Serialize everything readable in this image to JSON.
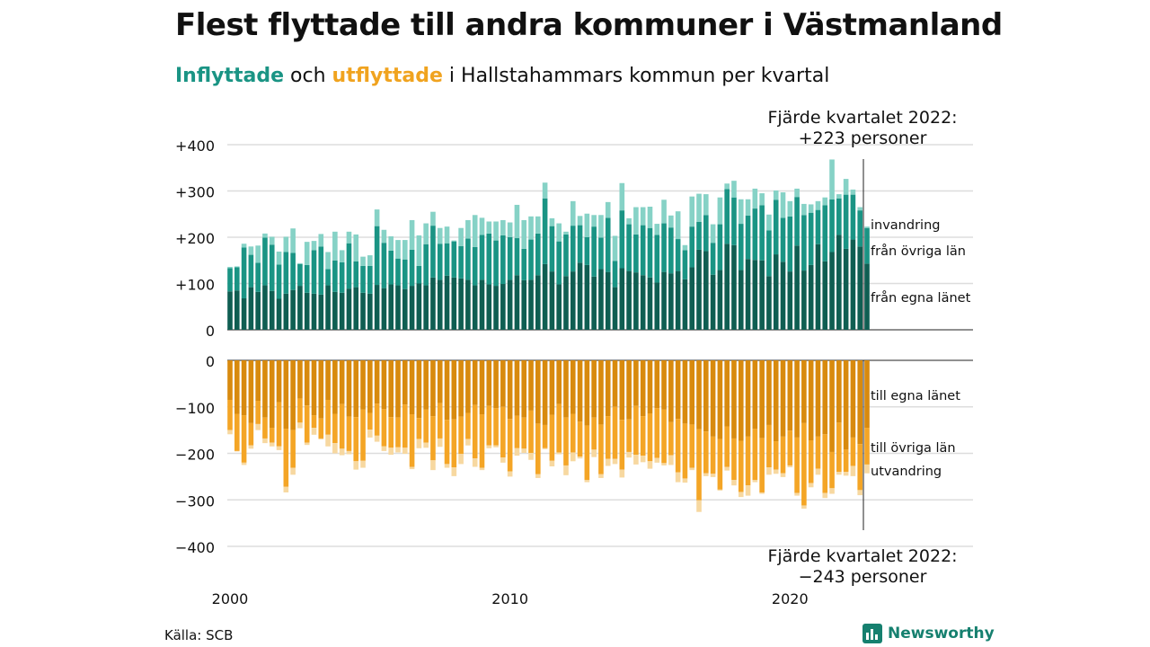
{
  "title": "Flest flyttade till andra kommuner i Västmanland",
  "subtitle": {
    "in_word": "Inflyttade",
    "mid_word": " och ",
    "out_word": "utflyttade",
    "rest": " i Hallstahammars kommun per kvartal"
  },
  "source": "Källa: SCB",
  "logo_text": "Newsworthy",
  "colors": {
    "in_egna": "#0f5e52",
    "in_ovriga": "#1a9484",
    "in_invandring": "#86d2c6",
    "out_egna": "#d88a0e",
    "out_ovriga": "#f4a526",
    "out_utvandring": "#f7d8a0",
    "grid": "#dddddd"
  },
  "chart_data": {
    "type": "bar",
    "stacked": true,
    "diverging": true,
    "period": "quarter",
    "start": "2000 Q1",
    "end": "2022 Q4",
    "x_ticks": [
      "2000",
      "2010",
      "2020"
    ],
    "y_ticks_top": [
      "+400",
      "+300",
      "+200",
      "+100",
      "0"
    ],
    "y_ticks_bottom": [
      "0",
      "−100",
      "−200",
      "−300",
      "−400"
    ],
    "ylim_in": [
      0,
      400
    ],
    "ylim_out": [
      -400,
      0
    ],
    "grid": true,
    "series_labels": {
      "in_egna": "från egna länet",
      "in_ovriga": "från övriga län",
      "in_invandring": "invandring",
      "out_egna": "till egna länet",
      "out_ovriga": "till övriga län",
      "out_utvandring": "utvandring"
    },
    "annotation_in": [
      "Fjärde kvartalet 2022:",
      "+223 personer"
    ],
    "annotation_out": [
      "Fjärde kvartalet 2022:",
      "−243 personer"
    ],
    "in_egna": [
      83,
      85,
      68,
      92,
      82,
      96,
      84,
      67,
      78,
      86,
      95,
      80,
      78,
      76,
      96,
      82,
      80,
      89,
      92,
      80,
      78,
      97,
      90,
      98,
      96,
      88,
      95,
      100,
      96,
      113,
      108,
      117,
      113,
      111,
      108,
      96,
      108,
      98,
      95,
      99,
      108,
      118,
      107,
      108,
      118,
      142,
      126,
      98,
      116,
      126,
      145,
      140,
      115,
      131,
      125,
      92,
      133,
      127,
      124,
      118,
      113,
      102,
      125,
      122,
      127,
      109,
      135,
      173,
      170,
      119,
      129,
      186,
      183,
      129,
      153,
      151,
      150,
      116,
      163,
      147,
      126,
      182,
      128,
      140,
      185,
      148,
      168,
      205,
      175,
      195,
      180,
      143
    ],
    "in_ovriga": [
      50,
      50,
      110,
      70,
      63,
      103,
      100,
      74,
      90,
      80,
      47,
      60,
      94,
      104,
      35,
      68,
      66,
      98,
      56,
      58,
      60,
      127,
      98,
      73,
      58,
      64,
      78,
      38,
      89,
      112,
      78,
      70,
      78,
      70,
      89,
      83,
      97,
      110,
      98,
      105,
      92,
      80,
      68,
      87,
      90,
      142,
      98,
      93,
      90,
      99,
      81,
      60,
      108,
      68,
      117,
      57,
      125,
      101,
      82,
      108,
      107,
      103,
      105,
      99,
      69,
      63,
      88,
      60,
      78,
      69,
      99,
      118,
      103,
      100,
      94,
      111,
      119,
      99,
      118,
      95,
      119,
      105,
      120,
      113,
      74,
      121,
      114,
      79,
      117,
      97,
      78,
      77
    ],
    "in_invandring": [
      3,
      2,
      8,
      18,
      37,
      9,
      17,
      28,
      33,
      53,
      2,
      50,
      20,
      27,
      37,
      62,
      26,
      25,
      58,
      20,
      23,
      36,
      28,
      31,
      40,
      42,
      64,
      66,
      45,
      30,
      34,
      36,
      2,
      39,
      40,
      69,
      37,
      26,
      41,
      33,
      32,
      72,
      62,
      50,
      37,
      34,
      17,
      39,
      6,
      53,
      20,
      51,
      25,
      49,
      34,
      54,
      59,
      13,
      59,
      39,
      46,
      24,
      51,
      26,
      60,
      11,
      65,
      61,
      45,
      40,
      58,
      12,
      36,
      53,
      35,
      43,
      26,
      34,
      20,
      55,
      33,
      18,
      24,
      18,
      19,
      17,
      86,
      9,
      34,
      11,
      7,
      3
    ],
    "out_egna": [
      85,
      115,
      118,
      135,
      87,
      123,
      145,
      90,
      147,
      150,
      82,
      97,
      118,
      125,
      85,
      115,
      94,
      121,
      122,
      106,
      113,
      93,
      105,
      122,
      123,
      95,
      116,
      124,
      106,
      120,
      92,
      128,
      127,
      121,
      113,
      96,
      116,
      98,
      103,
      100,
      126,
      119,
      123,
      108,
      136,
      139,
      117,
      94,
      123,
      115,
      132,
      140,
      123,
      138,
      120,
      100,
      128,
      127,
      98,
      120,
      114,
      103,
      106,
      133,
      126,
      136,
      138,
      148,
      153,
      164,
      169,
      142,
      168,
      173,
      164,
      147,
      167,
      139,
      174,
      164,
      151,
      166,
      135,
      172,
      164,
      159,
      197,
      134,
      192,
      166,
      180,
      145
    ],
    "out_ovriga": [
      65,
      80,
      102,
      48,
      50,
      45,
      32,
      95,
      125,
      81,
      52,
      80,
      27,
      43,
      75,
      63,
      96,
      74,
      95,
      110,
      36,
      69,
      80,
      66,
      64,
      93,
      113,
      45,
      71,
      95,
      76,
      95,
      103,
      80,
      56,
      115,
      115,
      85,
      80,
      109,
      113,
      70,
      67,
      91,
      109,
      50,
      99,
      104,
      103,
      83,
      75,
      117,
      69,
      107,
      92,
      112,
      107,
      70,
      105,
      85,
      103,
      107,
      115,
      71,
      115,
      118,
      93,
      153,
      90,
      80,
      109,
      87,
      89,
      110,
      105,
      110,
      117,
      91,
      61,
      79,
      75,
      119,
      177,
      92,
      69,
      126,
      78,
      106,
      48,
      61,
      99,
      79
    ],
    "out_utvandring": [
      9,
      1,
      5,
      7,
      13,
      10,
      8,
      8,
      12,
      15,
      12,
      5,
      15,
      2,
      25,
      22,
      14,
      7,
      18,
      15,
      17,
      13,
      10,
      15,
      11,
      13,
      5,
      20,
      11,
      21,
      18,
      8,
      19,
      22,
      14,
      18,
      5,
      6,
      4,
      11,
      11,
      16,
      9,
      15,
      8,
      2,
      12,
      4,
      21,
      19,
      4,
      5,
      16,
      8,
      15,
      11,
      17,
      12,
      21,
      14,
      16,
      10,
      5,
      21,
      21,
      9,
      5,
      25,
      6,
      7,
      2,
      8,
      12,
      11,
      22,
      5,
      3,
      16,
      9,
      8,
      4,
      6,
      7,
      9,
      13,
      11,
      12,
      6,
      8,
      22,
      11,
      19
    ]
  }
}
